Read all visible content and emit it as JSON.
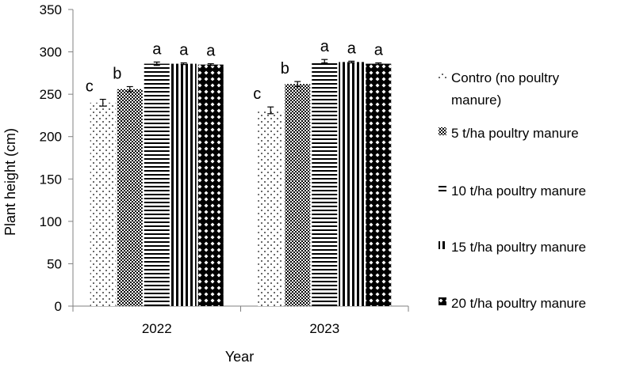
{
  "chart_data": {
    "type": "bar",
    "xlabel": "Year",
    "ylabel": "Plant height (cm)",
    "ylim": [
      0,
      350
    ],
    "yticks": [
      0,
      50,
      100,
      150,
      200,
      250,
      300,
      350
    ],
    "categories": [
      "2022",
      "2023"
    ],
    "grid": false,
    "legend_position": "right",
    "series": [
      {
        "name": "Contro (no poultry manure)",
        "pattern": "dots",
        "values": [
          240,
          231
        ],
        "errors": [
          4,
          4
        ],
        "letters": [
          "c",
          "c"
        ]
      },
      {
        "name": "5 t/ha poultry manure",
        "pattern": "checker",
        "values": [
          256,
          262
        ],
        "errors": [
          3,
          3
        ],
        "letters": [
          "b",
          "b"
        ]
      },
      {
        "name": "10 t/ha poultry manure",
        "pattern": "horizontal-lines",
        "values": [
          286,
          289
        ],
        "errors": [
          2,
          2
        ],
        "letters": [
          "a",
          "a"
        ]
      },
      {
        "name": "15 t/ha poultry manure",
        "pattern": "vertical-lines",
        "values": [
          286,
          288
        ],
        "errors": [
          1,
          1
        ],
        "letters": [
          "a",
          "a"
        ]
      },
      {
        "name": "20 t/ha poultry manure",
        "pattern": "diamond-lattice",
        "values": [
          285,
          286
        ],
        "errors": [
          1,
          1
        ],
        "letters": [
          "a",
          "a"
        ]
      }
    ]
  },
  "colors": {
    "foreground": "#000000",
    "background": "#ffffff",
    "axis": "#808080"
  }
}
